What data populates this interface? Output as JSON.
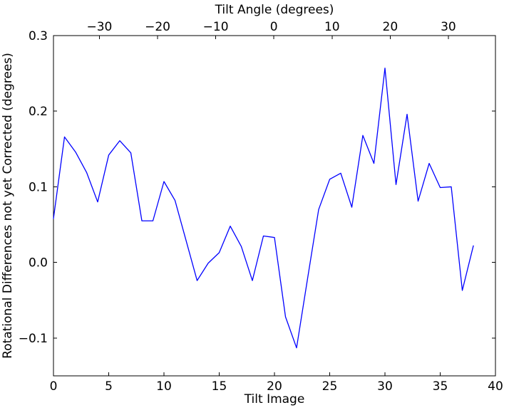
{
  "figure": {
    "background": "#ffffff",
    "axis_color": "#000000",
    "accent_line_color": "#0000ff"
  },
  "chart_data": {
    "type": "line",
    "title": "",
    "xlabel": "Tilt Image",
    "ylabel": "Rotational Differences not yet Corrected (degrees)",
    "top_xlabel": "Tilt Angle (degrees)",
    "xlim": [
      0,
      40
    ],
    "ylim": [
      -0.15,
      0.3
    ],
    "top_xlim": [
      -37.9,
      38.1
    ],
    "grid": false,
    "legend_position": "none",
    "xticks": {
      "values": [
        0,
        5,
        10,
        15,
        20,
        25,
        30,
        35,
        40
      ],
      "labels": [
        "0",
        "5",
        "10",
        "15",
        "20",
        "25",
        "30",
        "35",
        "40"
      ]
    },
    "yticks": {
      "values": [
        -0.1,
        0.0,
        0.1,
        0.2,
        0.3
      ],
      "labels": [
        "−0.1",
        "0.0",
        "0.1",
        "0.2",
        "0.3"
      ]
    },
    "top_xticks": {
      "values": [
        -30,
        -20,
        -10,
        0,
        10,
        20,
        30
      ],
      "labels": [
        "−30",
        "−20",
        "−10",
        "0",
        "10",
        "20",
        "30"
      ]
    },
    "series": [
      {
        "name": "rotational-differences",
        "color": "#0000ff",
        "x": [
          0,
          1,
          2,
          3,
          4,
          5,
          6,
          7,
          8,
          9,
          10,
          11,
          12,
          13,
          14,
          15,
          16,
          17,
          18,
          19,
          20,
          21,
          22,
          23,
          24,
          25,
          26,
          27,
          28,
          29,
          30,
          31,
          32,
          33,
          34,
          35,
          36,
          37,
          38
        ],
        "y": [
          0.058,
          0.166,
          0.146,
          0.119,
          0.08,
          0.142,
          0.161,
          0.145,
          0.055,
          0.055,
          0.107,
          0.082,
          0.029,
          -0.024,
          -0.001,
          0.013,
          0.048,
          0.021,
          -0.024,
          0.035,
          0.033,
          -0.072,
          -0.113,
          -0.021,
          0.07,
          0.11,
          0.118,
          0.073,
          0.168,
          0.131,
          0.257,
          0.103,
          0.196,
          0.081,
          0.131,
          0.099,
          0.1,
          -0.037,
          0.022
        ]
      }
    ]
  }
}
